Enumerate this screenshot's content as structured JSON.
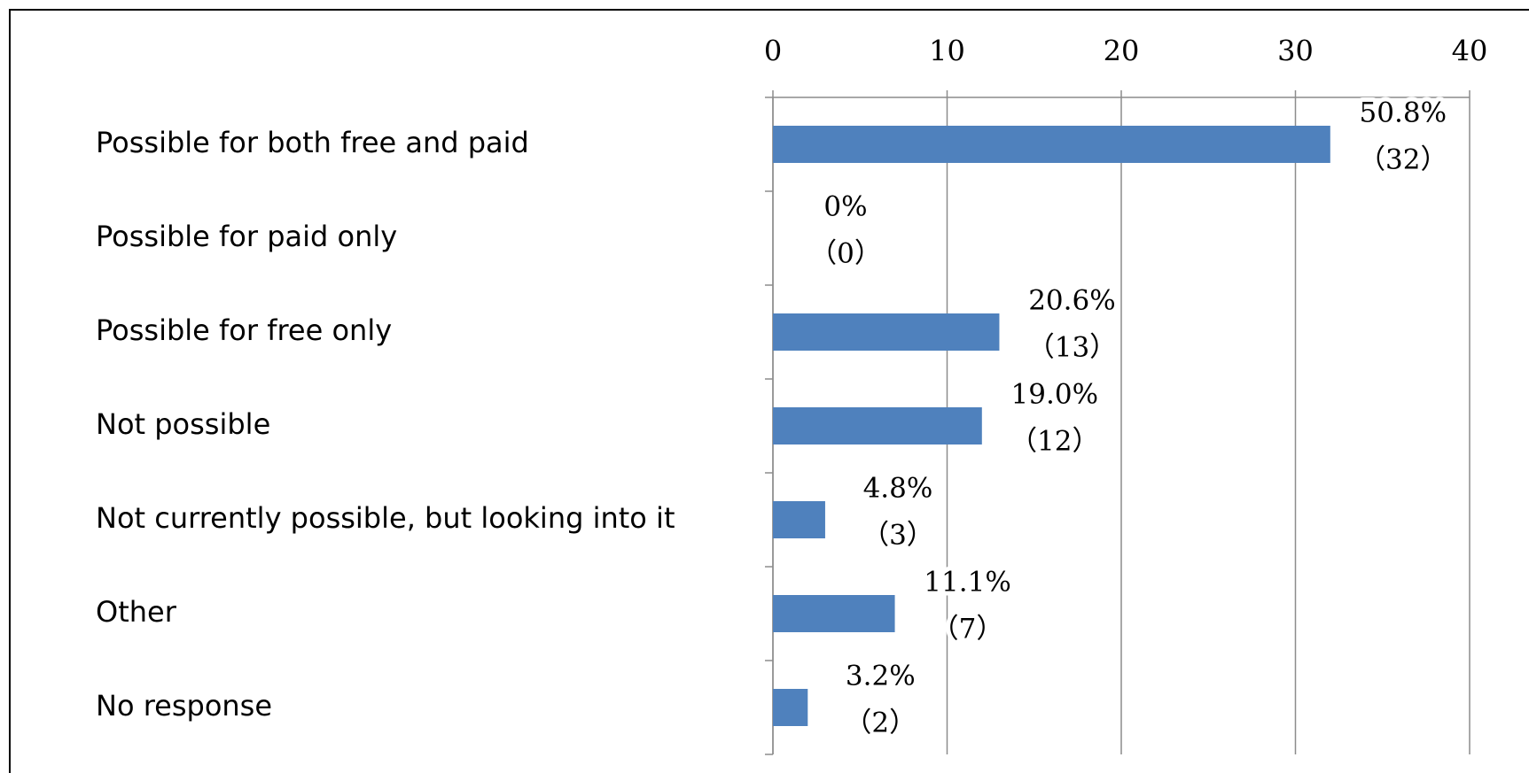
{
  "chart_data": {
    "type": "bar",
    "orientation": "horizontal",
    "categories": [
      "Possible for both free and paid",
      "Possible for paid only",
      "Possible for free only",
      "Not possible",
      "Not currently possible, but looking into it",
      "Other",
      "No response"
    ],
    "values": [
      32,
      0,
      13,
      12,
      3,
      7,
      2
    ],
    "value_labels": [
      [
        "50.8%",
        "（32）"
      ],
      [
        "0%",
        "（0）"
      ],
      [
        "20.6%",
        "（13）"
      ],
      [
        "19.0%",
        "（12）"
      ],
      [
        "4.8%",
        "（3）"
      ],
      [
        "11.1%",
        "（7）"
      ],
      [
        "3.2%",
        "（2）"
      ]
    ],
    "color": "#4f81bd",
    "xlim": [
      0,
      40
    ],
    "xticks": [
      0,
      10,
      20,
      30,
      40
    ],
    "grid": true
  }
}
